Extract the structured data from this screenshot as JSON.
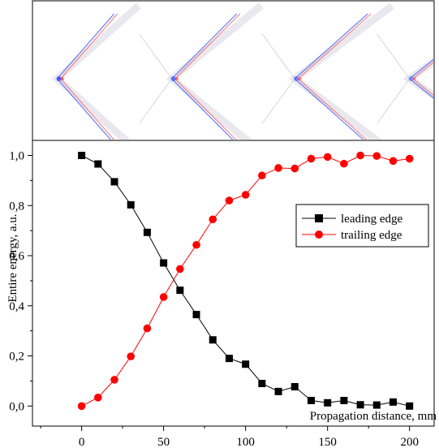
{
  "chart_data": {
    "type": "line",
    "title": "",
    "xlabel": "Propagation distance, mm",
    "ylabel": "Entire energy, a.u.",
    "xlim": [
      -30,
      215
    ],
    "ylim": [
      -0.08,
      1.06
    ],
    "xticks": [
      0,
      50,
      100,
      150,
      200
    ],
    "yticks": [
      0.0,
      0.2,
      0.4,
      0.6,
      0.8,
      1.0
    ],
    "x_tick_labels": [
      "0",
      "50",
      "100",
      "150",
      "200"
    ],
    "y_tick_labels": [
      "0,0",
      "0,2",
      "0,4",
      "0,6",
      "0,8",
      "1,0"
    ],
    "grid": false,
    "legend_position": "center-right",
    "x": [
      0,
      10,
      20,
      30,
      40,
      50,
      60,
      70,
      80,
      90,
      100,
      110,
      120,
      130,
      140,
      150,
      160,
      170,
      180,
      190,
      200
    ],
    "series": [
      {
        "name": "leading edge",
        "color": "#000000",
        "marker": "square",
        "values": [
          1.0,
          0.966,
          0.895,
          0.803,
          0.693,
          0.571,
          0.462,
          0.365,
          0.264,
          0.19,
          0.167,
          0.09,
          0.058,
          0.077,
          0.022,
          0.013,
          0.022,
          0.005,
          0.004,
          0.016,
          0.0
        ]
      },
      {
        "name": "trailing edge",
        "color": "#ff0000",
        "marker": "circle",
        "values": [
          0.0,
          0.034,
          0.105,
          0.198,
          0.31,
          0.435,
          0.547,
          0.643,
          0.745,
          0.82,
          0.843,
          0.92,
          0.95,
          0.948,
          0.987,
          0.994,
          0.967,
          1.0,
          0.998,
          0.978,
          0.987
        ]
      }
    ]
  },
  "inset_image": {
    "description_icon": "field-pattern-image",
    "pulses_x": [
      0,
      55,
      130,
      200
    ],
    "colors": {
      "positive": "#ff3b3b",
      "negative": "#3355ff",
      "background": "#ffffff"
    }
  }
}
